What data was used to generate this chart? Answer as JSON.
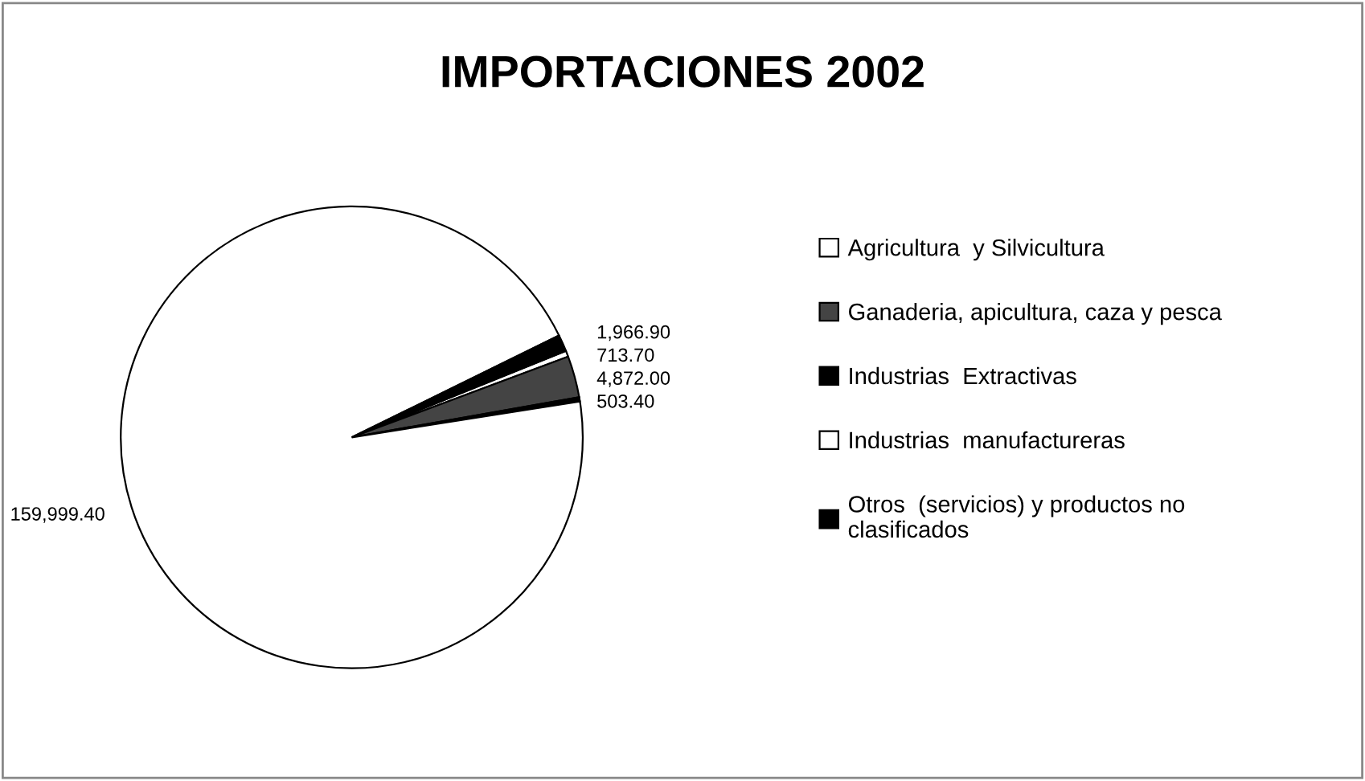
{
  "chart_data": {
    "type": "pie",
    "title": "IMPORTACIONES 2002",
    "categories": [
      "Agricultura  y Silvicultura",
      "Ganaderia, apicultura, caza y pesca",
      "Industrias  Extractivas",
      "Industrias  manufactureras",
      "Otros  (servicios) y productos no clasificados"
    ],
    "values": [
      713.7,
      4872.0,
      503.4,
      159999.4,
      1966.9
    ],
    "colors": [
      "#ffffff",
      "#444444",
      "#000000",
      "#ffffff",
      "#000000"
    ],
    "value_labels": [
      "713.70",
      "4,872.00",
      "503.40",
      "159,999.40",
      "1,966.90"
    ],
    "legend": "right"
  }
}
